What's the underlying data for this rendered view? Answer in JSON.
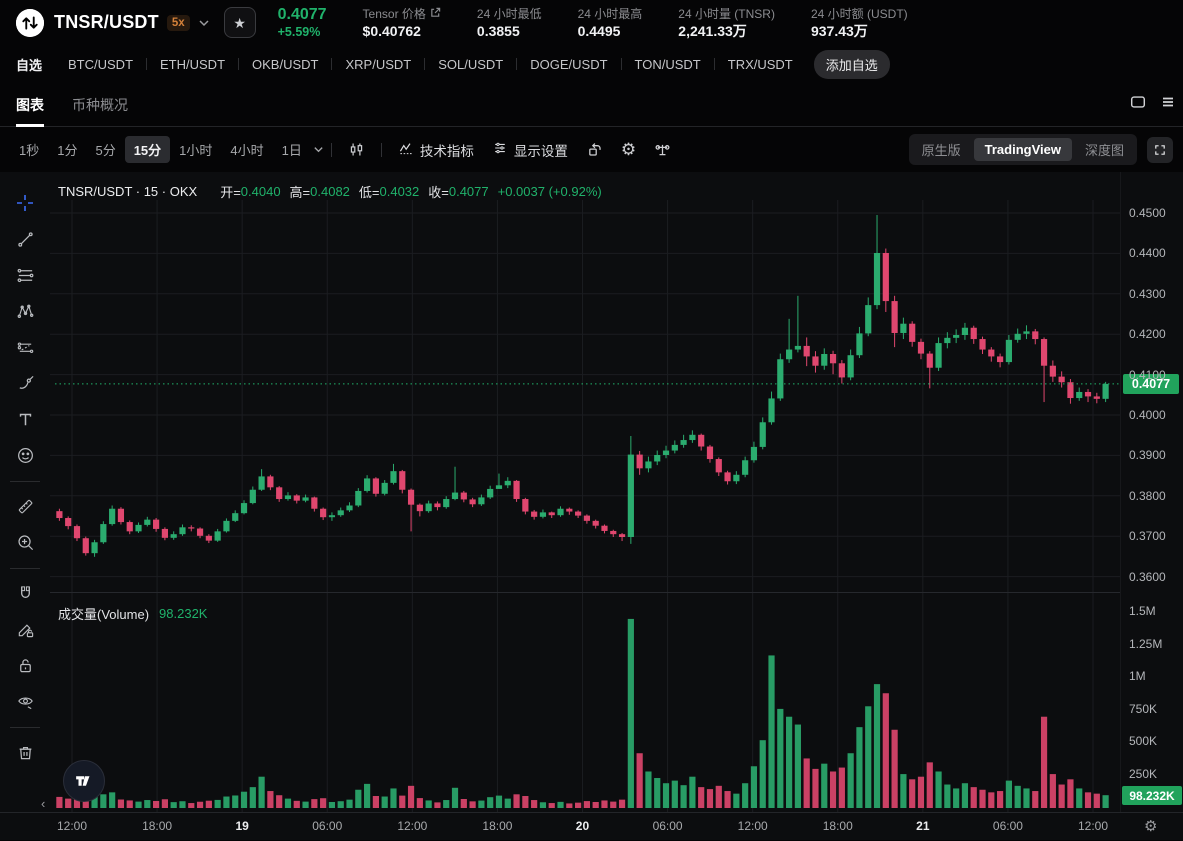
{
  "header": {
    "pair": "TNSR/USDT",
    "leverage": "5x",
    "price": "0.4077",
    "change": "+5.59%",
    "stats": [
      {
        "label": "Tensor 价格",
        "value": "$0.40762",
        "link": true
      },
      {
        "label": "24 小时最低",
        "value": "0.3855"
      },
      {
        "label": "24 小时最高",
        "value": "0.4495"
      },
      {
        "label": "24 小时量 (TNSR)",
        "value": "2,241.33万"
      },
      {
        "label": "24 小时额 (USDT)",
        "value": "937.43万"
      }
    ]
  },
  "pairs_bar": {
    "items": [
      "自选",
      "BTC/USDT",
      "ETH/USDT",
      "OKB/USDT",
      "XRP/USDT",
      "SOL/USDT",
      "DOGE/USDT",
      "TON/USDT",
      "TRX/USDT"
    ],
    "add_label": "添加自选"
  },
  "view_tabs": {
    "active": "图表",
    "inactive": "币种概况"
  },
  "toolbar": {
    "timeframes": [
      "1秒",
      "1分",
      "5分",
      "15分",
      "1小时",
      "4小时",
      "1日"
    ],
    "active_timeframe": "15分",
    "indicators_label": "技术指标",
    "display_settings_label": "显示设置",
    "chart_mode": {
      "options": [
        "原生版",
        "TradingView",
        "深度图"
      ],
      "active": "TradingView"
    }
  },
  "sidebar_tools": [
    "crosshair",
    "trend-line",
    "fib-lines",
    "xabcd-pattern",
    "projection",
    "brush",
    "text",
    "emoji",
    "ruler",
    "zoom-in",
    "magnet",
    "drawing-sync-lock",
    "lock-all",
    "hide-drawings",
    "delete"
  ],
  "chart": {
    "legend": {
      "title": "TNSR/USDT · 15 · OKX",
      "open_label": "开=",
      "open": "0.4040",
      "high_label": "高=",
      "high": "0.4082",
      "low_label": "低=",
      "low": "0.4032",
      "close_label": "收=",
      "close": "0.4077",
      "change": "+0.0037 (+0.92%)"
    },
    "current_price": "0.4077",
    "volume": {
      "label": "成交量(Volume)",
      "value": "98.232K",
      "current": "98.232K"
    }
  },
  "chart_data": {
    "type": "candlestick",
    "symbol": "TNSR/USDT",
    "interval": "15",
    "exchange": "OKX",
    "last_candle": {
      "open": 0.404,
      "high": 0.4082,
      "low": 0.4032,
      "close": 0.4077,
      "change": "+0.0037 (+0.92%)",
      "volume": 98232
    },
    "y_ticks": [
      "0.4500",
      "0.4400",
      "0.4300",
      "0.4200",
      "0.4100",
      "0.4000",
      "0.3900",
      "0.3800",
      "0.3700",
      "0.3600"
    ],
    "y_range": [
      0.3562,
      0.4519
    ],
    "volume_ticks": [
      "1.5M",
      "1.25M",
      "1M",
      "750K",
      "500K",
      "250K"
    ],
    "volume_range": [
      0,
      1500000
    ],
    "x_ticks": [
      {
        "label": "12:00"
      },
      {
        "label": "18:00"
      },
      {
        "label": "19",
        "day": true
      },
      {
        "label": "06:00"
      },
      {
        "label": "12:00"
      },
      {
        "label": "18:00"
      },
      {
        "label": "20",
        "day": true
      },
      {
        "label": "06:00"
      },
      {
        "label": "12:00"
      },
      {
        "label": "18:00"
      },
      {
        "label": "21",
        "day": true
      },
      {
        "label": "06:00"
      },
      {
        "label": "12:00"
      }
    ],
    "first_open": 0.3762,
    "candles_format": [
      "high",
      "low",
      "close",
      "volume"
    ],
    "candles": [
      [
        0.3768,
        0.3738,
        0.3745,
        85000
      ],
      [
        0.3749,
        0.3717,
        0.3725,
        72000
      ],
      [
        0.3729,
        0.3688,
        0.3695,
        95000
      ],
      [
        0.3699,
        0.3652,
        0.3658,
        110000
      ],
      [
        0.3691,
        0.3649,
        0.3685,
        90000
      ],
      [
        0.3737,
        0.3681,
        0.373,
        105000
      ],
      [
        0.3776,
        0.3726,
        0.3768,
        120000
      ],
      [
        0.3772,
        0.3729,
        0.3735,
        65000
      ],
      [
        0.3739,
        0.3705,
        0.3712,
        58000
      ],
      [
        0.3734,
        0.3708,
        0.3728,
        49000
      ],
      [
        0.3748,
        0.3724,
        0.3741,
        61000
      ],
      [
        0.3745,
        0.3711,
        0.3718,
        54000
      ],
      [
        0.3722,
        0.369,
        0.3696,
        67000
      ],
      [
        0.3712,
        0.3691,
        0.3705,
        45000
      ],
      [
        0.3729,
        0.3701,
        0.3722,
        52000
      ],
      [
        0.3727,
        0.3712,
        0.3719,
        38000
      ],
      [
        0.3722,
        0.3695,
        0.3701,
        48000
      ],
      [
        0.3705,
        0.3683,
        0.3689,
        56000
      ],
      [
        0.3718,
        0.3686,
        0.3712,
        62000
      ],
      [
        0.3744,
        0.3709,
        0.3738,
        88000
      ],
      [
        0.3764,
        0.3735,
        0.3757,
        96000
      ],
      [
        0.3789,
        0.3754,
        0.3782,
        125000
      ],
      [
        0.3823,
        0.3779,
        0.3815,
        160000
      ],
      [
        0.3866,
        0.3812,
        0.3848,
        240000
      ],
      [
        0.3852,
        0.3814,
        0.3821,
        130000
      ],
      [
        0.3824,
        0.3785,
        0.3792,
        98000
      ],
      [
        0.3809,
        0.3788,
        0.3801,
        72000
      ],
      [
        0.3804,
        0.3781,
        0.3788,
        55000
      ],
      [
        0.3803,
        0.3784,
        0.3796,
        49000
      ],
      [
        0.3798,
        0.3761,
        0.3768,
        68000
      ],
      [
        0.3771,
        0.374,
        0.3747,
        75000
      ],
      [
        0.3759,
        0.3738,
        0.3752,
        46000
      ],
      [
        0.3771,
        0.3748,
        0.3764,
        52000
      ],
      [
        0.3784,
        0.376,
        0.3776,
        64000
      ],
      [
        0.3819,
        0.3772,
        0.3812,
        140000
      ],
      [
        0.3851,
        0.3808,
        0.3843,
        185000
      ],
      [
        0.3846,
        0.3798,
        0.3805,
        92000
      ],
      [
        0.3839,
        0.3801,
        0.3832,
        88000
      ],
      [
        0.3879,
        0.3828,
        0.3861,
        150000
      ],
      [
        0.3864,
        0.3806,
        0.3815,
        95000
      ],
      [
        0.3818,
        0.3712,
        0.3778,
        170000
      ],
      [
        0.3781,
        0.3749,
        0.3762,
        76000
      ],
      [
        0.3788,
        0.3758,
        0.3781,
        58000
      ],
      [
        0.3786,
        0.3764,
        0.3772,
        43000
      ],
      [
        0.3799,
        0.3768,
        0.3792,
        61000
      ],
      [
        0.3872,
        0.3789,
        0.3808,
        155000
      ],
      [
        0.3812,
        0.3784,
        0.3791,
        69000
      ],
      [
        0.3795,
        0.3772,
        0.3779,
        51000
      ],
      [
        0.3803,
        0.3775,
        0.3796,
        57000
      ],
      [
        0.3825,
        0.3792,
        0.3817,
        83000
      ],
      [
        0.3855,
        0.3821,
        0.3826,
        95000
      ],
      [
        0.3846,
        0.3819,
        0.3837,
        72000
      ],
      [
        0.3839,
        0.3785,
        0.3792,
        105000
      ],
      [
        0.3795,
        0.3754,
        0.3761,
        92000
      ],
      [
        0.3765,
        0.3741,
        0.3748,
        61000
      ],
      [
        0.3766,
        0.3744,
        0.3759,
        44000
      ],
      [
        0.3761,
        0.3745,
        0.3752,
        38000
      ],
      [
        0.3774,
        0.3748,
        0.3768,
        47000
      ],
      [
        0.3771,
        0.3753,
        0.3761,
        35000
      ],
      [
        0.3764,
        0.3745,
        0.3751,
        41000
      ],
      [
        0.3754,
        0.3731,
        0.3738,
        53000
      ],
      [
        0.3741,
        0.3719,
        0.3726,
        46000
      ],
      [
        0.3729,
        0.3707,
        0.3713,
        58000
      ],
      [
        0.3716,
        0.3698,
        0.3705,
        49000
      ],
      [
        0.3708,
        0.3688,
        0.3698,
        64000
      ],
      [
        0.3948,
        0.3681,
        0.3902,
        1450000
      ],
      [
        0.3911,
        0.3852,
        0.3868,
        420000
      ],
      [
        0.3897,
        0.3858,
        0.3885,
        280000
      ],
      [
        0.3912,
        0.3876,
        0.3901,
        230000
      ],
      [
        0.3924,
        0.3893,
        0.3912,
        190000
      ],
      [
        0.3937,
        0.3905,
        0.3926,
        210000
      ],
      [
        0.3951,
        0.3919,
        0.3938,
        175000
      ],
      [
        0.3962,
        0.3931,
        0.3951,
        240000
      ],
      [
        0.3954,
        0.3912,
        0.3922,
        160000
      ],
      [
        0.3926,
        0.3882,
        0.3891,
        145000
      ],
      [
        0.3895,
        0.3849,
        0.3858,
        170000
      ],
      [
        0.3862,
        0.3828,
        0.3836,
        130000
      ],
      [
        0.3861,
        0.3829,
        0.3852,
        110000
      ],
      [
        0.3897,
        0.3846,
        0.3888,
        190000
      ],
      [
        0.3934,
        0.3882,
        0.3921,
        320000
      ],
      [
        0.3994,
        0.3915,
        0.3982,
        520000
      ],
      [
        0.4058,
        0.3976,
        0.4041,
        1170000
      ],
      [
        0.4152,
        0.4035,
        0.4138,
        760000
      ],
      [
        0.4238,
        0.4129,
        0.4162,
        700000
      ],
      [
        0.4295,
        0.4155,
        0.4171,
        640000
      ],
      [
        0.4192,
        0.4121,
        0.4145,
        380000
      ],
      [
        0.4158,
        0.4105,
        0.4122,
        300000
      ],
      [
        0.4165,
        0.4112,
        0.4151,
        340000
      ],
      [
        0.4159,
        0.4101,
        0.4128,
        280000
      ],
      [
        0.4136,
        0.4078,
        0.4093,
        310000
      ],
      [
        0.4162,
        0.4086,
        0.4148,
        420000
      ],
      [
        0.4218,
        0.4141,
        0.4202,
        620000
      ],
      [
        0.4291,
        0.4195,
        0.4272,
        780000
      ],
      [
        0.4495,
        0.4262,
        0.4401,
        950000
      ],
      [
        0.4412,
        0.4255,
        0.4282,
        880000
      ],
      [
        0.4295,
        0.4168,
        0.4203,
        600000
      ],
      [
        0.4241,
        0.4188,
        0.4226,
        260000
      ],
      [
        0.4232,
        0.4169,
        0.4181,
        220000
      ],
      [
        0.4189,
        0.4138,
        0.4152,
        240000
      ],
      [
        0.4158,
        0.4066,
        0.4117,
        350000
      ],
      [
        0.4192,
        0.4109,
        0.4178,
        280000
      ],
      [
        0.4205,
        0.4165,
        0.4191,
        180000
      ],
      [
        0.4212,
        0.4178,
        0.4198,
        150000
      ],
      [
        0.4228,
        0.4186,
        0.4216,
        190000
      ],
      [
        0.4221,
        0.4176,
        0.4188,
        160000
      ],
      [
        0.4194,
        0.4151,
        0.4162,
        140000
      ],
      [
        0.4168,
        0.4132,
        0.4145,
        120000
      ],
      [
        0.4152,
        0.4118,
        0.4131,
        130000
      ],
      [
        0.4198,
        0.4125,
        0.4186,
        210000
      ],
      [
        0.4214,
        0.4179,
        0.4201,
        170000
      ],
      [
        0.4222,
        0.4188,
        0.4207,
        150000
      ],
      [
        0.4213,
        0.4175,
        0.4188,
        130000
      ],
      [
        0.4192,
        0.4032,
        0.4122,
        700000
      ],
      [
        0.4135,
        0.4082,
        0.4095,
        260000
      ],
      [
        0.4108,
        0.4068,
        0.4081,
        180000
      ],
      [
        0.4089,
        0.4028,
        0.4042,
        220000
      ],
      [
        0.4068,
        0.4035,
        0.4057,
        150000
      ],
      [
        0.4064,
        0.4032,
        0.4046,
        120000
      ],
      [
        0.4055,
        0.4029,
        0.404,
        110000
      ],
      [
        0.4082,
        0.4032,
        0.4077,
        98232
      ]
    ]
  },
  "colors": {
    "up": "#2bac6f",
    "down": "#e0476f",
    "badge_green": "#21a35c",
    "text_green": "#20b26b",
    "leverage_orange": "#d4813a",
    "accent_blue": "#3d6df7",
    "grid": "#1b1d21"
  }
}
